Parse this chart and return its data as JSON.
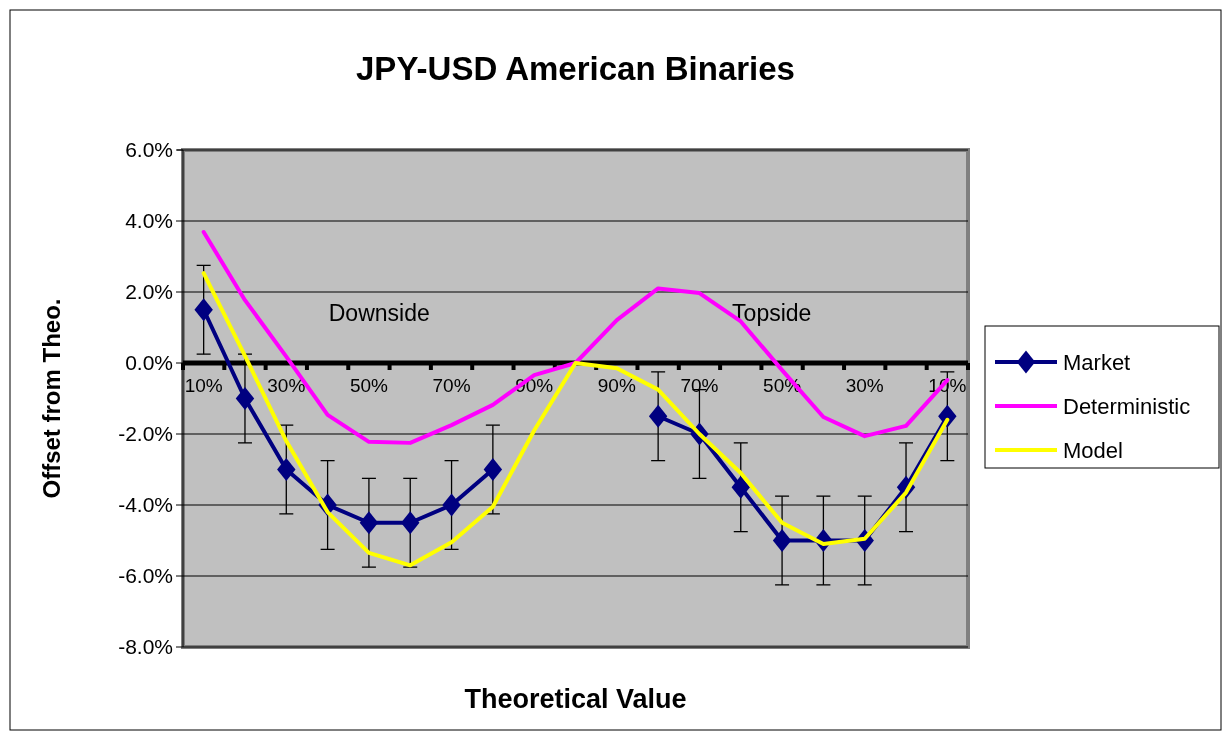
{
  "chart_data": {
    "type": "line",
    "title": "JPY-USD American Binaries",
    "xlabel": "Theoretical Value",
    "ylabel": "Offset from Theo.",
    "categories": [
      "10%",
      null,
      "30%",
      null,
      "50%",
      null,
      "70%",
      null,
      "90%",
      null,
      "90%",
      null,
      "70%",
      null,
      "50%",
      null,
      "30%",
      null,
      "10%"
    ],
    "series": [
      {
        "name": "Market",
        "color": "#000080",
        "marker": "diamond",
        "values": [
          1.5,
          -1.0,
          -3.0,
          -4.0,
          -4.5,
          -4.5,
          -4.0,
          -3.0,
          null,
          null,
          null,
          -1.5,
          -2.0,
          -3.5,
          -5.0,
          -5.0,
          -5.0,
          -3.5,
          -1.5
        ],
        "errors": [
          1.25,
          1.25,
          1.25,
          1.25,
          1.25,
          1.25,
          1.25,
          1.25,
          null,
          null,
          null,
          1.25,
          1.25,
          1.25,
          1.25,
          1.25,
          1.25,
          1.25,
          1.25
        ]
      },
      {
        "name": "Deterministic",
        "color": "#ff00ff",
        "marker": "none",
        "values": [
          3.69,
          1.77,
          0.18,
          -1.46,
          -2.22,
          -2.25,
          -1.75,
          -1.18,
          -0.34,
          0.0,
          1.21,
          2.1,
          1.97,
          1.17,
          -0.2,
          -1.52,
          -2.06,
          -1.77,
          -0.48
        ]
      },
      {
        "name": "Model",
        "color": "#ffff00",
        "marker": "none",
        "values": [
          2.53,
          0.2,
          -2.2,
          -4.2,
          -5.35,
          -5.7,
          -5.05,
          -4.05,
          -1.9,
          0.0,
          -0.15,
          -0.75,
          -2.0,
          -3.1,
          -4.5,
          -5.1,
          -4.95,
          -3.65,
          -1.6
        ]
      }
    ],
    "ylim": [
      -8,
      6
    ],
    "yticks": [
      {
        "value": -8,
        "label": "-8.0%"
      },
      {
        "value": -6,
        "label": "-6.0%"
      },
      {
        "value": -4,
        "label": "-4.0%"
      },
      {
        "value": -2,
        "label": "-2.0%"
      },
      {
        "value": 0,
        "label": "0.0%"
      },
      {
        "value": 2,
        "label": "2.0%"
      },
      {
        "value": 4,
        "label": "4.0%"
      },
      {
        "value": 6,
        "label": "6.0%"
      }
    ],
    "grid": "y",
    "legend": "right",
    "line_style": "solid",
    "annotations": [
      "Downside",
      "Topside"
    ]
  }
}
